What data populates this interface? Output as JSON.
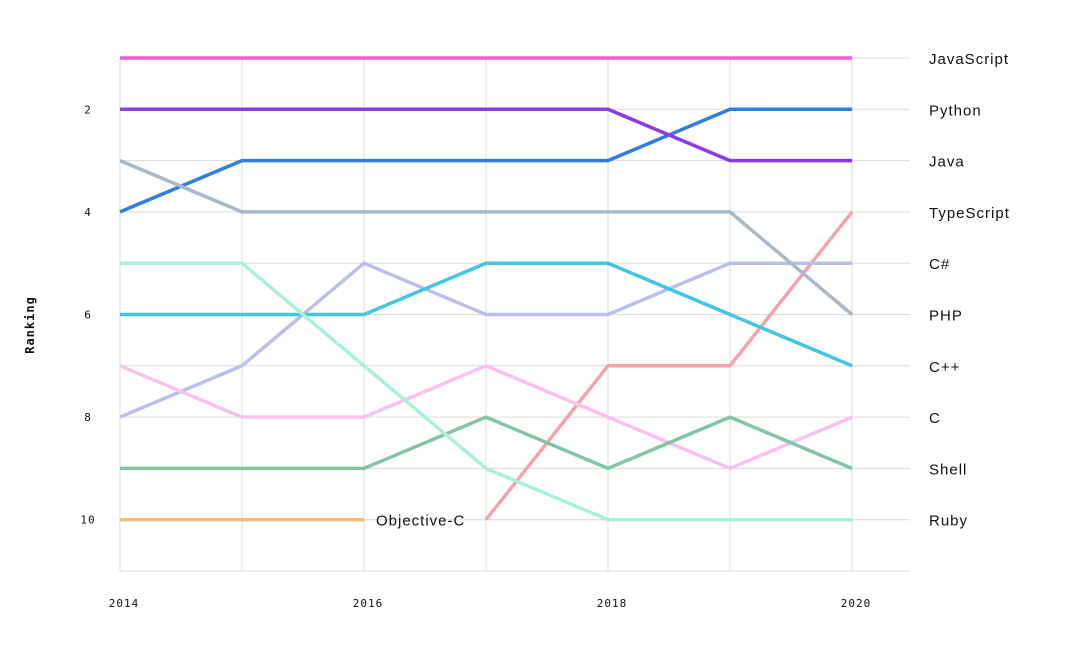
{
  "chart_data": {
    "type": "line",
    "subtype": "bump",
    "title": "",
    "xlabel": "",
    "ylabel": "Ranking",
    "x": [
      2014,
      2015,
      2016,
      2017,
      2018,
      2019,
      2020
    ],
    "x_tick_labels": [
      "2014",
      "2016",
      "2018",
      "2020"
    ],
    "y_tick_labels": [
      "2",
      "4",
      "6",
      "8",
      "10"
    ],
    "ylim": [
      1,
      11
    ],
    "y_inverted": true,
    "grid": true,
    "series": [
      {
        "name": "JavaScript",
        "color": "#ef5bd9",
        "values": [
          1,
          1,
          1,
          1,
          1,
          1,
          1
        ]
      },
      {
        "name": "Python",
        "color": "#2f7fe0",
        "values": [
          4,
          3,
          3,
          3,
          3,
          2,
          2
        ]
      },
      {
        "name": "Java",
        "color": "#8a3ae6",
        "values": [
          2,
          2,
          2,
          2,
          2,
          3,
          3
        ]
      },
      {
        "name": "TypeScript",
        "color": "#f6a3a8",
        "values": [
          null,
          null,
          null,
          10,
          7,
          7,
          4
        ]
      },
      {
        "name": "C#",
        "color": "#b7c0ee",
        "values": [
          8,
          7,
          5,
          6,
          6,
          5,
          5
        ]
      },
      {
        "name": "PHP",
        "color": "#a9b9c9",
        "values": [
          3,
          4,
          4,
          4,
          4,
          4,
          6
        ]
      },
      {
        "name": "C++",
        "color": "#43c6e2",
        "values": [
          6,
          6,
          6,
          5,
          5,
          6,
          7
        ]
      },
      {
        "name": "C",
        "color": "#f9c2f2",
        "values": [
          7,
          8,
          8,
          7,
          8,
          9,
          8
        ]
      },
      {
        "name": "Shell",
        "color": "#82c6a6",
        "values": [
          9,
          9,
          9,
          8,
          9,
          8,
          9
        ]
      },
      {
        "name": "Ruby",
        "color": "#aaf2d6",
        "values": [
          5,
          5,
          7,
          9,
          10,
          10,
          10
        ]
      },
      {
        "name": "Objective-C",
        "color": "#f4bf78",
        "values": [
          10,
          10,
          10,
          null,
          null,
          null,
          null
        ],
        "inline_label": true
      }
    ]
  }
}
